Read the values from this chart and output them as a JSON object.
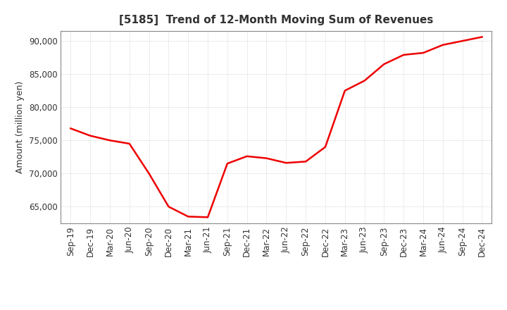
{
  "title": "[5185]  Trend of 12-Month Moving Sum of Revenues",
  "ylabel": "Amount (million yen)",
  "line_color": "#ee0000",
  "line_width": 1.8,
  "background_color": "#ffffff",
  "plot_bg_color": "#ffffff",
  "grid_color": "#bbbbbb",
  "x_labels": [
    "Sep-19",
    "Dec-19",
    "Mar-20",
    "Jun-20",
    "Sep-20",
    "Dec-20",
    "Mar-21",
    "Jun-21",
    "Sep-21",
    "Dec-21",
    "Mar-22",
    "Jun-22",
    "Sep-22",
    "Dec-22",
    "Mar-23",
    "Jun-23",
    "Sep-23",
    "Dec-23",
    "Mar-24",
    "Jun-24",
    "Sep-24",
    "Dec-24"
  ],
  "values": [
    76800,
    75700,
    75000,
    74500,
    70000,
    65000,
    63500,
    63400,
    71500,
    72600,
    72300,
    71600,
    71800,
    74000,
    82500,
    84000,
    86500,
    87900,
    88200,
    89400,
    90000,
    90600
  ],
  "ylim": [
    62500,
    91500
  ],
  "yticks": [
    65000,
    70000,
    75000,
    80000,
    85000,
    90000
  ],
  "title_fontsize": 11,
  "tick_fontsize": 8.5,
  "ylabel_fontsize": 9,
  "title_color": "#333333",
  "tick_color": "#333333"
}
